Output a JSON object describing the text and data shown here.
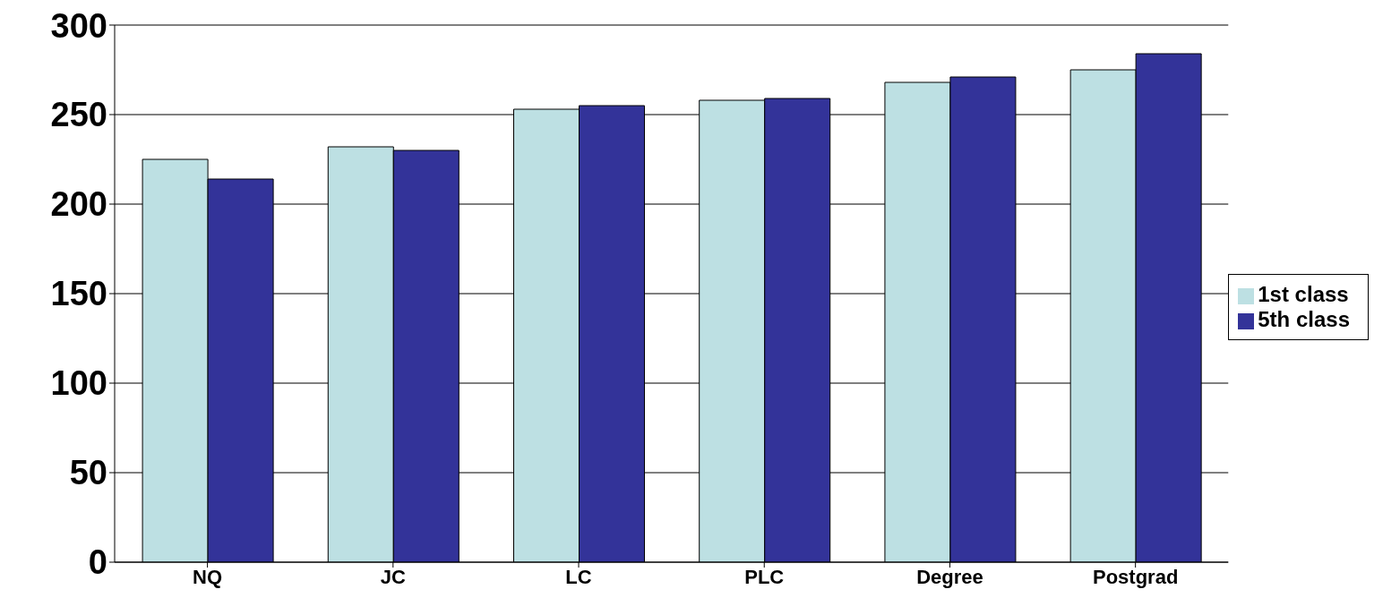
{
  "chart_data": {
    "type": "bar",
    "categories": [
      "NQ",
      "JC",
      "LC",
      "PLC",
      "Degree",
      "Postgrad"
    ],
    "series": [
      {
        "name": "1st class",
        "color": "#bde0e3",
        "values": [
          225,
          232,
          253,
          258,
          268,
          275
        ]
      },
      {
        "name": "5th class",
        "color": "#333399",
        "values": [
          214,
          230,
          255,
          259,
          271,
          284
        ]
      }
    ],
    "ylim": [
      0,
      300
    ],
    "yticks": [
      0,
      50,
      100,
      150,
      200,
      250,
      300
    ],
    "grid": "y",
    "legend": "right"
  }
}
